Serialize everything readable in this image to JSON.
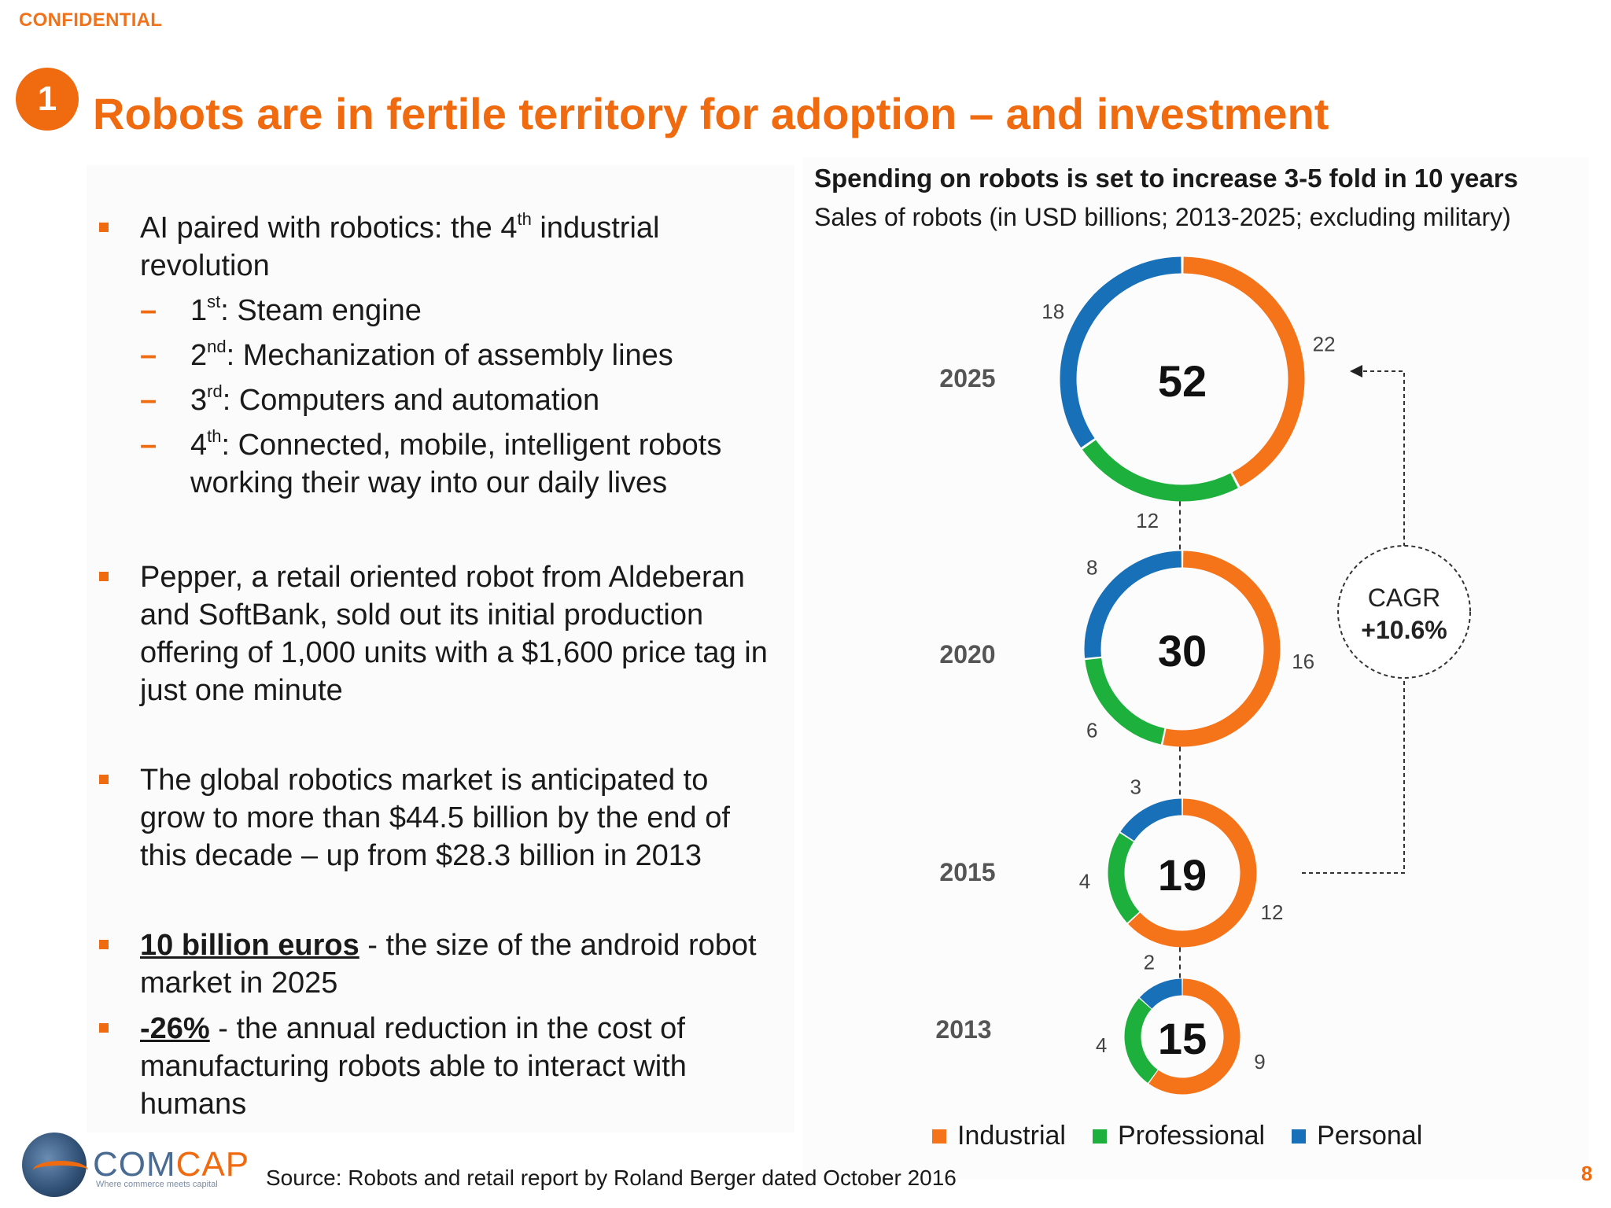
{
  "header": {
    "confidential": "CONFIDENTIAL",
    "section_number": "1",
    "title": "Robots are in fertile territory for adoption – and investment"
  },
  "bullets": {
    "b1": {
      "pre": "AI paired with robotics: the 4",
      "sup": "th",
      "post": " industrial revolution",
      "subs": [
        {
          "dash": "–",
          "num": "1",
          "sup": "st",
          "text": ": Steam engine"
        },
        {
          "dash": "–",
          "num": "2",
          "sup": "nd",
          "text": ": Mechanization of assembly lines"
        },
        {
          "dash": "–",
          "num": "3",
          "sup": "rd",
          "text": ": Computers and automation"
        },
        {
          "dash": "–",
          "num": "4",
          "sup": "th",
          "text": ": Connected, mobile, intelligent robots working their way into our daily lives"
        }
      ]
    },
    "b2": "Pepper, a retail oriented robot from Aldeberan and SoftBank, sold out its initial production offering of 1,000 units with a $1,600 price tag in just one minute",
    "b3": "The global robotics market is anticipated to grow to more than $44.5 billion by the end of this decade – up from $28.3 billion in 2013",
    "b4": {
      "bold": "10 billion euros",
      "rest": " - the size of the android robot market in 2025"
    },
    "b5": {
      "bold": "-26%",
      "rest": " - the annual reduction in the cost of manufacturing robots able to interact with humans"
    }
  },
  "colors": {
    "industrial": "#f5741a",
    "professional": "#1db03c",
    "personal": "#1770b8",
    "accent": "#f06a0f"
  },
  "chart_data": {
    "type": "donut",
    "title": "Spending on robots is set to increase 3-5 fold in 10 years",
    "subtitle": "Sales of robots (in USD billions; 2013-2025; excluding military)",
    "series_names": [
      "Industrial",
      "Professional",
      "Personal"
    ],
    "years": [
      {
        "year": "2025",
        "total": 52,
        "industrial": 22,
        "professional": 12,
        "personal": 18
      },
      {
        "year": "2020",
        "total": 30,
        "industrial": 16,
        "professional": 6,
        "personal": 8
      },
      {
        "year": "2015",
        "total": 19,
        "industrial": 12,
        "professional": 4,
        "personal": 3
      },
      {
        "year": "2013",
        "total": 15,
        "industrial": 9,
        "professional": 4,
        "personal": 2
      }
    ],
    "cagr_label": "CAGR",
    "cagr_value": "+10.6%"
  },
  "legend": {
    "industrial": "Industrial",
    "professional": "Professional",
    "personal": "Personal"
  },
  "footer": {
    "logo_com": "COM",
    "logo_cap": "CAP",
    "tagline": "Where commerce meets capital",
    "source": "Source: Robots and retail report by Roland Berger dated October 2016",
    "page": "8"
  }
}
